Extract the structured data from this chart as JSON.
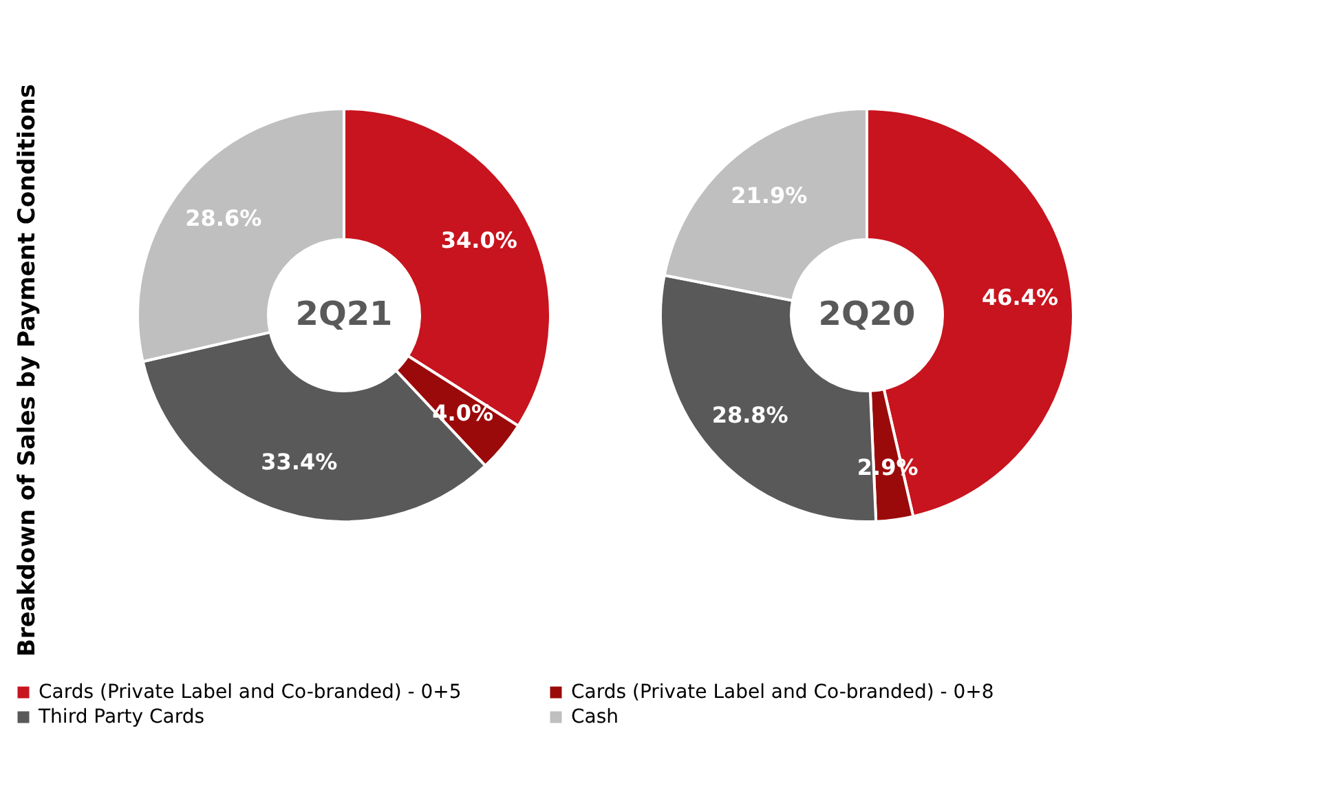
{
  "chart_data": {
    "type": "donut",
    "ylabel": "Breakdown of Sales by Payment Conditions",
    "categories": [
      "Cards (Private Label and Co-branded) - 0+5",
      "Cards (Private Label and Co-branded) - 0+8",
      "Third Party Cards",
      "Cash"
    ],
    "colors": [
      "#c8141e",
      "#9b0a0a",
      "#595959",
      "#bfbfbf"
    ],
    "legend": "bottom",
    "series": [
      {
        "name": "2Q21",
        "values": [
          34.0,
          4.0,
          33.4,
          28.6
        ],
        "value_labels": [
          "34.0%",
          "4.0%",
          "33.4%",
          "28.6%"
        ]
      },
      {
        "name": "2Q20",
        "values": [
          46.4,
          2.9,
          28.8,
          21.9
        ],
        "value_labels": [
          "46.4%",
          "2.9%",
          "28.8%",
          "21.9%"
        ]
      }
    ]
  }
}
